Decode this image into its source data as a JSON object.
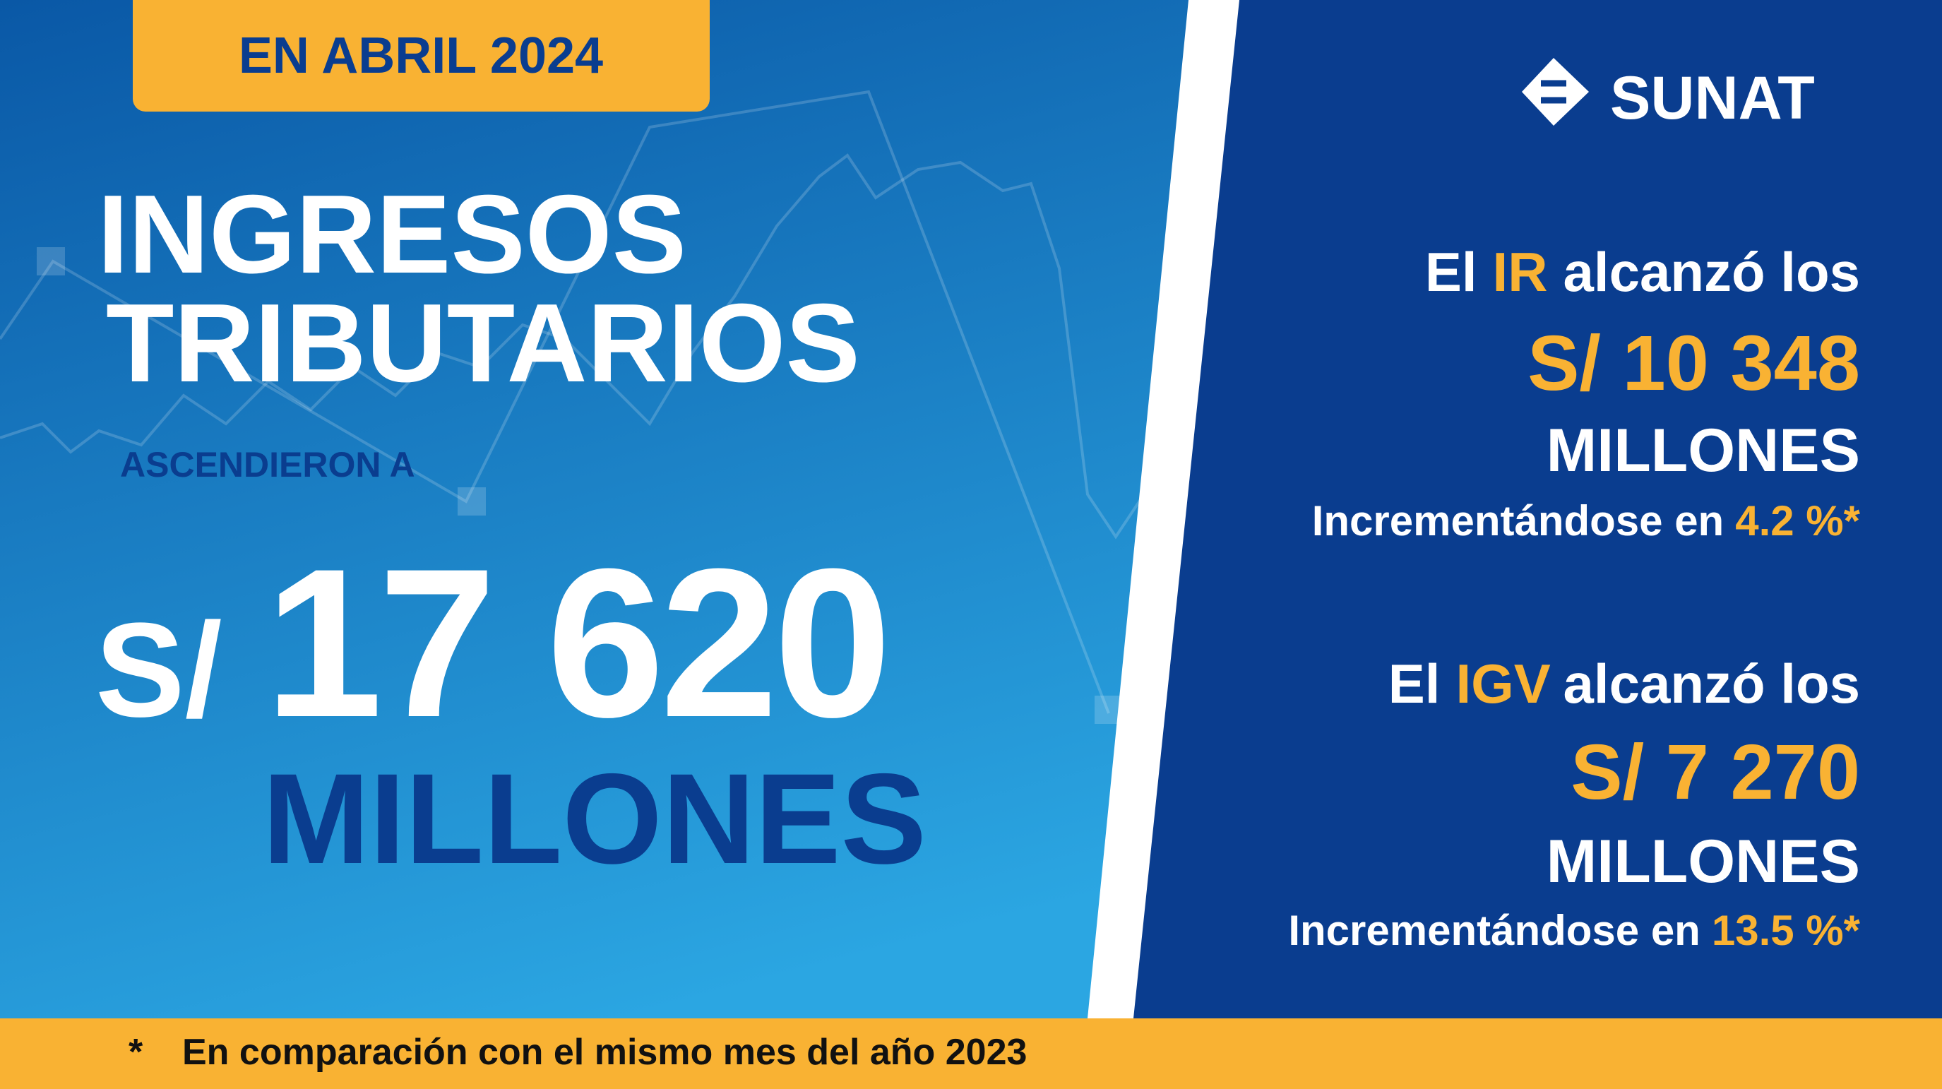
{
  "header": {
    "tag": "EN ABRIL 2024",
    "title_line1": "INGRESOS",
    "title_line2": "TRIBUTARIOS",
    "subtitle": "ASCENDIERON A",
    "currency": "S/",
    "amount": "17 620",
    "unit": "MILLONES"
  },
  "logo": {
    "text": "SUNAT"
  },
  "items": [
    {
      "prefix": "El",
      "tax": "IR",
      "verb": "alcanzó los",
      "amount": "S/ 10 348",
      "unit": "MILLONES",
      "change_text": "Incrementándose en",
      "change": "4.2 %*"
    },
    {
      "prefix": "El",
      "tax": "IGV",
      "verb": "alcanzó los",
      "amount": "S/ 7 270",
      "unit": "MILLONES",
      "change_text": "Incrementándose en",
      "change": "13.5 %*"
    }
  ],
  "footnote": {
    "marker": "*",
    "text": "En comparación con el mismo mes del año 2023"
  }
}
